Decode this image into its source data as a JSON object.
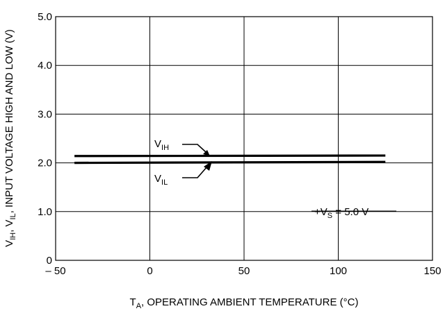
{
  "chart_data": {
    "type": "line",
    "xlabel": {
      "sym": "T",
      "sub": "A",
      "rest": ", OPERATING AMBIENT TEMPERATURE (°C)"
    },
    "ylabel": {
      "p1": "V",
      "p1sub": "IH",
      "p2": ",  V",
      "p2sub": "IL",
      "rest": ", INPUT VOLTAGE HIGH AND LOW (V)"
    },
    "xlim": [
      -50,
      150
    ],
    "ylim": [
      0,
      5.0
    ],
    "x_ticks": [
      {
        "value": -50,
        "label": "– 50"
      },
      {
        "value": 0,
        "label": "0"
      },
      {
        "value": 50,
        "label": "50"
      },
      {
        "value": 100,
        "label": "100"
      },
      {
        "value": 150,
        "label": "150"
      }
    ],
    "y_ticks": [
      {
        "value": 0,
        "label": "0"
      },
      {
        "value": 1.0,
        "label": "1.0"
      },
      {
        "value": 2.0,
        "label": "2.0"
      },
      {
        "value": 3.0,
        "label": "3.0"
      },
      {
        "value": 4.0,
        "label": "4.0"
      },
      {
        "value": 5.0,
        "label": "5.0"
      }
    ],
    "grid": true,
    "series": [
      {
        "name": "VIH",
        "label_main": "V",
        "label_sub": "IH",
        "x": [
          -40,
          125
        ],
        "values": [
          2.14,
          2.15
        ]
      },
      {
        "name": "VIL",
        "label_main": "V",
        "label_sub": "IL",
        "x": [
          -40,
          125
        ],
        "values": [
          2.0,
          2.02
        ]
      }
    ],
    "annotation": {
      "pre": "+V",
      "sub": "S",
      "post": " = 5.0 V"
    }
  }
}
